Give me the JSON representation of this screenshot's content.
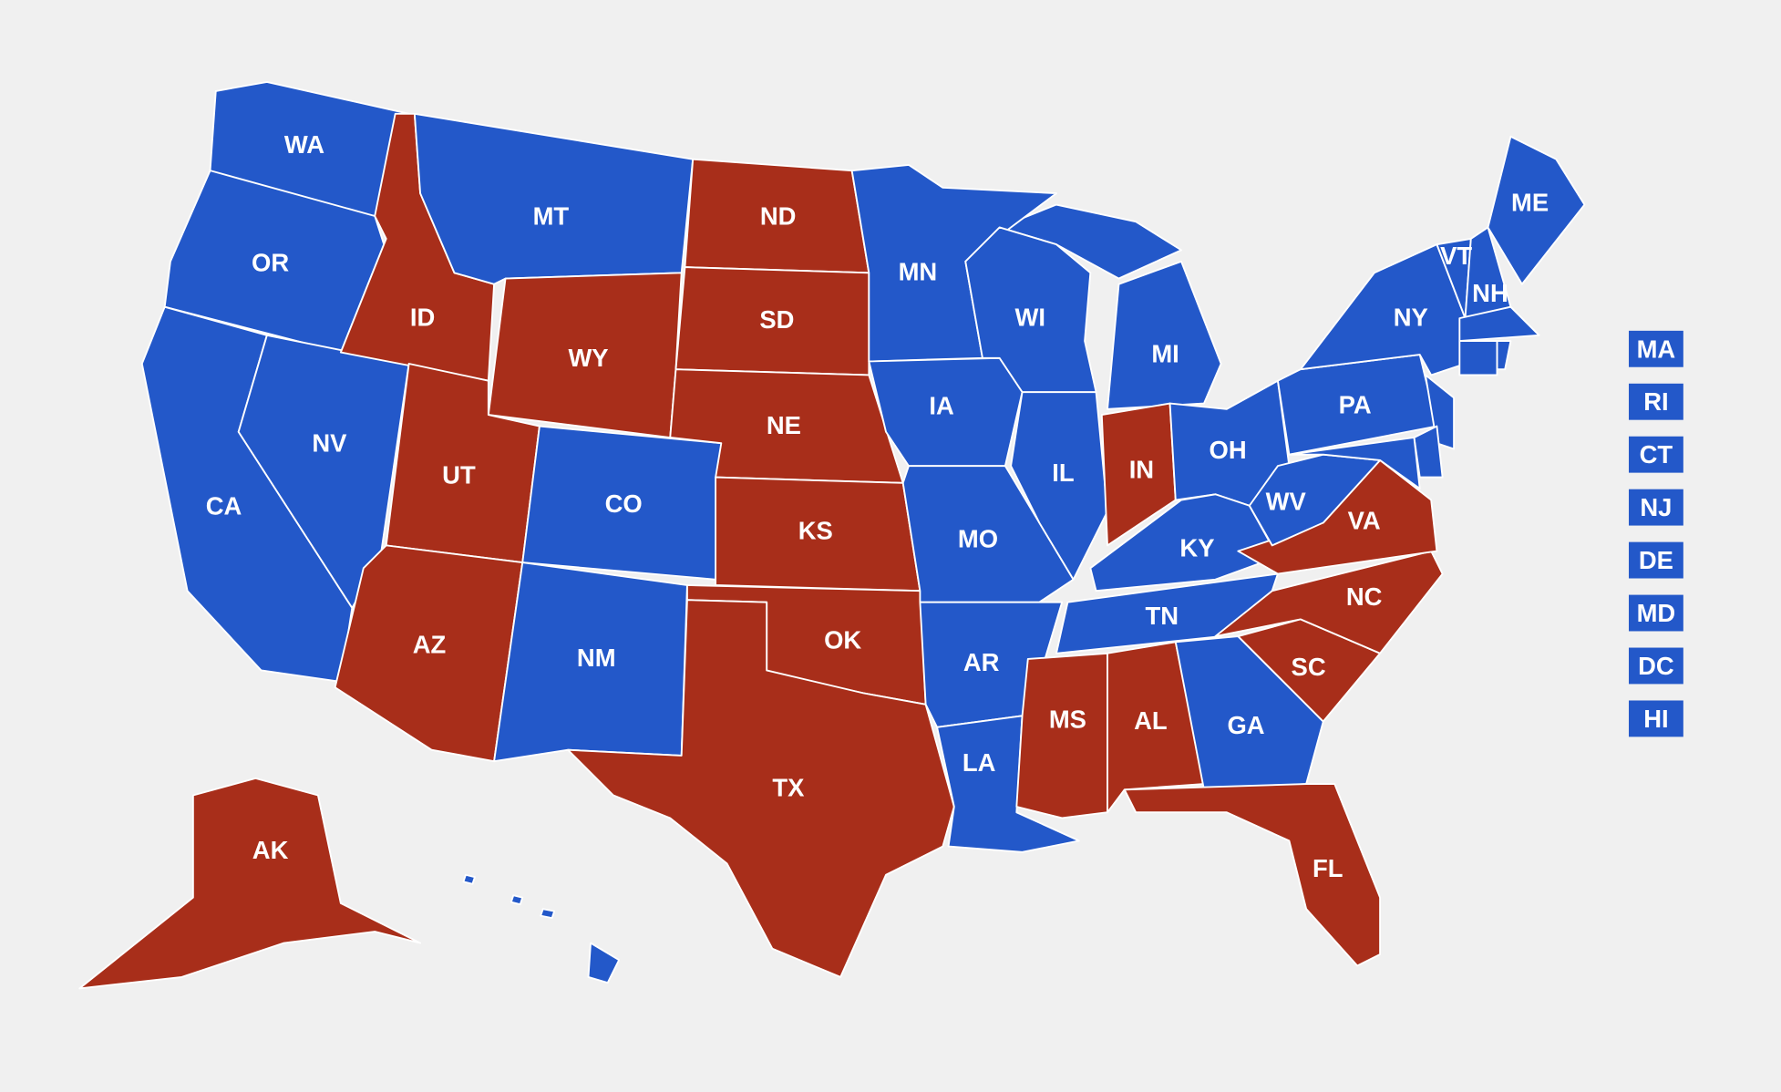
{
  "states": [
    {
      "label": "WA",
      "color": "#2358c9"
    },
    {
      "label": "OR",
      "color": "#2358c9"
    },
    {
      "label": "CA",
      "color": "#2358c9"
    },
    {
      "label": "NV",
      "color": "#2358c9"
    },
    {
      "label": "ID",
      "color": "#a82e1a"
    },
    {
      "label": "MT",
      "color": "#2358c9"
    },
    {
      "label": "WY",
      "color": "#a82e1a"
    },
    {
      "label": "UT",
      "color": "#a82e1a"
    },
    {
      "label": "CO",
      "color": "#2358c9"
    },
    {
      "label": "AZ",
      "color": "#a82e1a"
    },
    {
      "label": "NM",
      "color": "#2358c9"
    },
    {
      "label": "ND",
      "color": "#a82e1a"
    },
    {
      "label": "SD",
      "color": "#a82e1a"
    },
    {
      "label": "NE",
      "color": "#a82e1a"
    },
    {
      "label": "KS",
      "color": "#a82e1a"
    },
    {
      "label": "OK",
      "color": "#a82e1a"
    },
    {
      "label": "TX",
      "color": "#a82e1a"
    },
    {
      "label": "MN",
      "color": "#2358c9"
    },
    {
      "label": "IA",
      "color": "#2358c9"
    },
    {
      "label": "MO",
      "color": "#2358c9"
    },
    {
      "label": "AR",
      "color": "#2358c9"
    },
    {
      "label": "LA",
      "color": "#2358c9"
    },
    {
      "label": "WI",
      "color": "#2358c9"
    },
    {
      "label": "IL",
      "color": "#2358c9"
    },
    {
      "label": "MI",
      "color": "#2358c9"
    },
    {
      "label": "IN",
      "color": "#a82e1a"
    },
    {
      "label": "OH",
      "color": "#2358c9"
    },
    {
      "label": "KY",
      "color": "#2358c9"
    },
    {
      "label": "TN",
      "color": "#2358c9"
    },
    {
      "label": "MS",
      "color": "#a82e1a"
    },
    {
      "label": "AL",
      "color": "#a82e1a"
    },
    {
      "label": "GA",
      "color": "#2358c9"
    },
    {
      "label": "FL",
      "color": "#a82e1a"
    },
    {
      "label": "SC",
      "color": "#a82e1a"
    },
    {
      "label": "NC",
      "color": "#a82e1a"
    },
    {
      "label": "VA",
      "color": "#a82e1a"
    },
    {
      "label": "WV",
      "color": "#2358c9"
    },
    {
      "label": "PA",
      "color": "#2358c9"
    },
    {
      "label": "NY",
      "color": "#2358c9"
    },
    {
      "label": "VT",
      "color": "#2358c9"
    },
    {
      "label": "NH",
      "color": "#2358c9"
    },
    {
      "label": "ME",
      "color": "#2358c9"
    },
    {
      "label": "AK",
      "color": "#a82e1a"
    }
  ],
  "side_boxes": [
    {
      "label": "MA",
      "color": "#2358c9"
    },
    {
      "label": "RI",
      "color": "#2358c9"
    },
    {
      "label": "CT",
      "color": "#2358c9"
    },
    {
      "label": "NJ",
      "color": "#2358c9"
    },
    {
      "label": "DE",
      "color": "#2358c9"
    },
    {
      "label": "MD",
      "color": "#2358c9"
    },
    {
      "label": "DC",
      "color": "#2358c9"
    },
    {
      "label": "HI",
      "color": "#2358c9"
    }
  ]
}
